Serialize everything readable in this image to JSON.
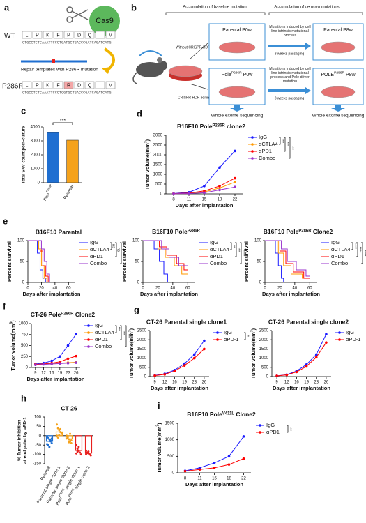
{
  "panel_a": {
    "label": "a",
    "wt_label": "WT",
    "wt_aa": [
      "L",
      "P",
      "K",
      "F",
      "P",
      "D",
      "Q",
      "I",
      "M"
    ],
    "wt_dna": "CTGCCTCTCAAATTCCCTGATGCTGACCCGATCAGATCATG",
    "cas9": "Cas9",
    "template": "Repair templates with P286R mutation",
    "mut_label": "P286R",
    "mut_aa": [
      "L",
      "P",
      "K",
      "F",
      "R",
      "D",
      "Q",
      "I",
      "M"
    ],
    "mut_dna": "CTGCCTCTCAAATTCCCTCGTGCTGACCCGATCAGATCATG"
  },
  "panel_b": {
    "label": "b",
    "header_left": "Accumulation of baseline mutation",
    "header_right": "Accumulation of de novo mutations",
    "no_edit": "Without CRISPR-HDR editing",
    "edit": "CRISPR-HDR editing",
    "parental_p0": "Parental P0w",
    "pole_p0": [
      "Pole",
      "P286R",
      " P0w"
    ],
    "mut_parental": "Mutations induced by cell line intrinsic mutational process",
    "passage_parental": "8 weeks passaging",
    "mut_pole": "Mutations induced by cell line intrinsic mutational process and Pole driver mutation",
    "passage_pole": "8 weeks passaging",
    "parental_p8": "Parental P8w",
    "pole_p8": [
      "POLE",
      "P286R",
      " P8w"
    ],
    "wes_left": "Whole exome sequencing",
    "wes_right": "Whole exome sequencing"
  },
  "chart_data": [
    {
      "type": "bar",
      "panel": "c",
      "ylabel": "Total SNV count post-culture",
      "categories": [
        [
          "Pole",
          "P286R"
        ],
        "Parental"
      ],
      "values": [
        3600,
        3050
      ],
      "colors": [
        "#1f6fd1",
        "#f5a21b"
      ],
      "ylim": [
        0,
        4000
      ],
      "yticks": [
        0,
        1000,
        2000,
        3000,
        4000
      ],
      "significance": [
        "***"
      ]
    },
    {
      "type": "line",
      "panel": "d",
      "title": [
        "B16F10 Pole",
        "P286R",
        " clone2"
      ],
      "ylabel": [
        "Tumor volume(mm",
        "3",
        ")"
      ],
      "xlabel": "Days after implantation",
      "categories": [
        "8",
        "11",
        "15",
        "18",
        "22"
      ],
      "ylim": [
        0,
        3000
      ],
      "yticks": [
        0,
        500,
        1000,
        1500,
        2000,
        2500,
        3000
      ],
      "series": [
        {
          "name": "IgG",
          "color": "#1a1aff",
          "values": [
            20,
            80,
            400,
            1350,
            2200
          ]
        },
        {
          "name": "αCTLA4",
          "color": "#ff9900",
          "values": [
            15,
            30,
            100,
            300,
            600
          ]
        },
        {
          "name": "αPD1",
          "color": "#ff0000",
          "values": [
            15,
            40,
            150,
            400,
            800
          ]
        },
        {
          "name": "Combo",
          "color": "#9933cc",
          "values": [
            10,
            20,
            60,
            200,
            350
          ]
        }
      ],
      "significance": [
        "***",
        "***",
        "***"
      ]
    },
    {
      "type": "step",
      "panel": "e",
      "title": "B16F10 Parental",
      "ylabel": "Percent survival",
      "xlabel": "Days after implantation",
      "xlim": [
        0,
        70
      ],
      "xticks": [
        0,
        20,
        40,
        60
      ],
      "ylim": [
        0,
        100
      ],
      "yticks": [
        0,
        50,
        100
      ],
      "series": [
        {
          "name": "IgG",
          "color": "#1a1aff",
          "x": [
            0,
            14,
            14,
            18,
            18,
            22,
            22,
            26,
            26
          ],
          "values": [
            100,
            100,
            70,
            70,
            30,
            30,
            10,
            10,
            0
          ]
        },
        {
          "name": "αCTLA4",
          "color": "#ff9900",
          "x": [
            0,
            16,
            16,
            20,
            20,
            24,
            24,
            28,
            28
          ],
          "values": [
            100,
            100,
            80,
            80,
            40,
            40,
            10,
            10,
            0
          ]
        },
        {
          "name": "αPD1",
          "color": "#ff0000",
          "x": [
            0,
            18,
            18,
            22,
            22,
            26,
            26,
            30,
            30
          ],
          "values": [
            100,
            100,
            75,
            75,
            40,
            40,
            15,
            15,
            0
          ]
        },
        {
          "name": "Combo",
          "color": "#9933cc",
          "x": [
            0,
            20,
            20,
            24,
            24,
            28,
            28,
            32,
            32
          ],
          "values": [
            100,
            100,
            80,
            80,
            50,
            50,
            20,
            20,
            0
          ]
        }
      ],
      "significance": [
        "ns",
        "ns",
        "***"
      ]
    },
    {
      "type": "step",
      "title": [
        "B16F10 Pole",
        "P286R"
      ],
      "ylabel": "Percent survival",
      "xlabel": "Days after implantation",
      "xlim": [
        0,
        70
      ],
      "xticks": [
        0,
        20,
        40,
        60
      ],
      "ylim": [
        0,
        100
      ],
      "yticks": [
        0,
        50,
        100
      ],
      "series": [
        {
          "name": "IgG",
          "color": "#1a1aff",
          "x": [
            0,
            15,
            15,
            22,
            22,
            28,
            28,
            33,
            33
          ],
          "values": [
            100,
            100,
            80,
            80,
            50,
            50,
            20,
            20,
            0
          ]
        },
        {
          "name": "αCTLA4",
          "color": "#ff9900",
          "x": [
            0,
            20,
            20,
            30,
            30,
            42,
            42,
            52,
            52,
            60
          ],
          "values": [
            100,
            100,
            80,
            80,
            60,
            60,
            40,
            40,
            20,
            20
          ]
        },
        {
          "name": "αPD1",
          "color": "#ff0000",
          "x": [
            0,
            22,
            22,
            32,
            32,
            45,
            45,
            55,
            55,
            60
          ],
          "values": [
            100,
            100,
            85,
            85,
            65,
            65,
            45,
            45,
            30,
            30
          ]
        },
        {
          "name": "Combo",
          "color": "#9933cc",
          "x": [
            0,
            25,
            25,
            35,
            35,
            48,
            48,
            60
          ],
          "values": [
            100,
            100,
            80,
            80,
            60,
            60,
            40,
            40
          ]
        }
      ],
      "significance": [
        "**",
        "***",
        "****"
      ]
    },
    {
      "type": "step",
      "title": [
        "B16F10 Pole",
        "P286R",
        " Clone2"
      ],
      "ylabel": "Percent survival",
      "xlabel": "Days after implantation",
      "xlim": [
        0,
        70
      ],
      "xticks": [
        0,
        20,
        40,
        60
      ],
      "ylim": [
        0,
        100
      ],
      "yticks": [
        0,
        50,
        100
      ],
      "series": [
        {
          "name": "IgG",
          "color": "#1a1aff",
          "x": [
            0,
            14,
            14,
            18,
            18,
            22,
            22,
            25,
            25
          ],
          "values": [
            100,
            100,
            70,
            70,
            40,
            40,
            10,
            10,
            0
          ]
        },
        {
          "name": "αCTLA4",
          "color": "#ff9900",
          "x": [
            0,
            18,
            18,
            25,
            25,
            35,
            35,
            50,
            50,
            60
          ],
          "values": [
            100,
            100,
            70,
            70,
            40,
            40,
            20,
            20,
            10,
            10
          ]
        },
        {
          "name": "αPD1",
          "color": "#ff0000",
          "x": [
            0,
            20,
            20,
            28,
            28,
            38,
            38,
            52,
            52,
            60
          ],
          "values": [
            100,
            100,
            75,
            75,
            45,
            45,
            25,
            25,
            10,
            10
          ]
        },
        {
          "name": "Combo",
          "color": "#9933cc",
          "x": [
            0,
            22,
            22,
            30,
            30,
            42,
            42,
            55,
            55,
            60
          ],
          "values": [
            100,
            100,
            80,
            80,
            50,
            50,
            30,
            30,
            15,
            15
          ]
        }
      ],
      "significance": [
        "****",
        "****",
        "****"
      ]
    },
    {
      "type": "line",
      "panel": "f",
      "title": [
        "CT-26 Pole",
        "P286R",
        " Clone2"
      ],
      "ylabel": [
        "Tumor volume(mm",
        "3",
        ")"
      ],
      "xlabel": "Days after implantation",
      "categories": [
        "9",
        "12",
        "16",
        "19",
        "23",
        "26"
      ],
      "ylim": [
        0,
        1000
      ],
      "yticks": [
        0,
        250,
        500,
        750,
        1000
      ],
      "series": [
        {
          "name": "IgG",
          "color": "#1a1aff",
          "values": [
            80,
            100,
            150,
            250,
            500,
            760
          ]
        },
        {
          "name": "αCTLA4",
          "color": "#ff9900",
          "values": [
            70,
            80,
            90,
            100,
            110,
            120
          ]
        },
        {
          "name": "αPD1",
          "color": "#ff0000",
          "values": [
            70,
            80,
            100,
            130,
            200,
            260
          ]
        },
        {
          "name": "Combo",
          "color": "#9933cc",
          "values": [
            60,
            70,
            80,
            90,
            100,
            110
          ]
        }
      ],
      "significance": [
        "***",
        "***",
        "***"
      ]
    },
    {
      "type": "line",
      "panel": "g",
      "title": "CT-26 Parental single clone1",
      "ylabel": [
        "Tumor volume(mm",
        "3",
        ")"
      ],
      "xlabel": "Days after implantation",
      "categories": [
        "9",
        "12",
        "16",
        "19",
        "23",
        "26"
      ],
      "ylim": [
        0,
        2500
      ],
      "yticks": [
        0,
        500,
        1000,
        1500,
        2000,
        2500
      ],
      "series": [
        {
          "name": "IgG",
          "color": "#1a1aff",
          "values": [
            60,
            150,
            350,
            700,
            1200,
            1950
          ]
        },
        {
          "name": "αPD-1",
          "color": "#ff0000",
          "values": [
            50,
            120,
            300,
            600,
            1000,
            1500
          ]
        }
      ],
      "significance": [
        "*"
      ]
    },
    {
      "type": "line",
      "title": "CT-26 Parental single clone2",
      "ylabel": [
        "Tumor volume(mm",
        "3",
        ")"
      ],
      "xlabel": "Days after implantation",
      "categories": [
        "9",
        "12",
        "16",
        "19",
        "23",
        "26"
      ],
      "ylim": [
        0,
        2500
      ],
      "yticks": [
        0,
        500,
        1000,
        1500,
        2000,
        2500
      ],
      "series": [
        {
          "name": "IgG",
          "color": "#1a1aff",
          "values": [
            40,
            100,
            300,
            650,
            1200,
            2300
          ]
        },
        {
          "name": "αPD-1",
          "color": "#ff0000",
          "values": [
            40,
            90,
            250,
            550,
            1050,
            1850
          ]
        }
      ],
      "significance": [
        "**"
      ]
    },
    {
      "type": "bar_scatter",
      "panel": "h",
      "title": "CT-26",
      "ylabel_lines": [
        "% Tumor inhibition",
        "at end point by αPD-1"
      ],
      "categories": [
        "Parental",
        "Parental single clone 1",
        "Parental single clone 2",
        [
          "Pole",
          "P286R",
          " single clone 1"
        ],
        [
          "Pole",
          "P286R",
          " single clone 2"
        ]
      ],
      "values": [
        -30,
        20,
        -17,
        -79,
        -93
      ],
      "colors": [
        "#1f6fd1",
        "#f5a21b",
        "#f5a21b",
        "#e8201e",
        "#e8201e"
      ],
      "ylim": [
        -150,
        100
      ],
      "yticks": [
        -150,
        -100,
        -50,
        0,
        50,
        100
      ],
      "points": [
        [
          -5,
          -10,
          -20,
          -30,
          -40,
          -45,
          -50,
          -60,
          -25,
          -15
        ],
        [
          60,
          40,
          30,
          20,
          10,
          0,
          -10,
          5,
          35,
          15
        ],
        [
          0,
          -10,
          -20,
          -30,
          -25,
          -15,
          -5,
          -35,
          10,
          -40
        ],
        [
          -50,
          -70,
          -80,
          -90,
          -100,
          -95,
          -85,
          -60
        ],
        [
          -80,
          -90,
          -95,
          -100,
          -105,
          -98,
          -92,
          -85
        ]
      ]
    },
    {
      "type": "line",
      "panel": "i",
      "title": [
        "B16F10 Pole",
        "V411L",
        " Clone2"
      ],
      "ylabel": [
        "Tumor volume(mm",
        "3",
        ")"
      ],
      "xlabel": "Days after implantation",
      "categories": [
        "8",
        "11",
        "15",
        "18",
        "22"
      ],
      "ylim": [
        0,
        1500
      ],
      "yticks": [
        0,
        500,
        1000,
        1500
      ],
      "series": [
        {
          "name": "IgG",
          "color": "#1a1aff",
          "values": [
            60,
            150,
            300,
            500,
            1100
          ]
        },
        {
          "name": "αPD1",
          "color": "#ff0000",
          "values": [
            50,
            100,
            150,
            250,
            430
          ]
        }
      ],
      "significance": [
        "***"
      ]
    }
  ]
}
